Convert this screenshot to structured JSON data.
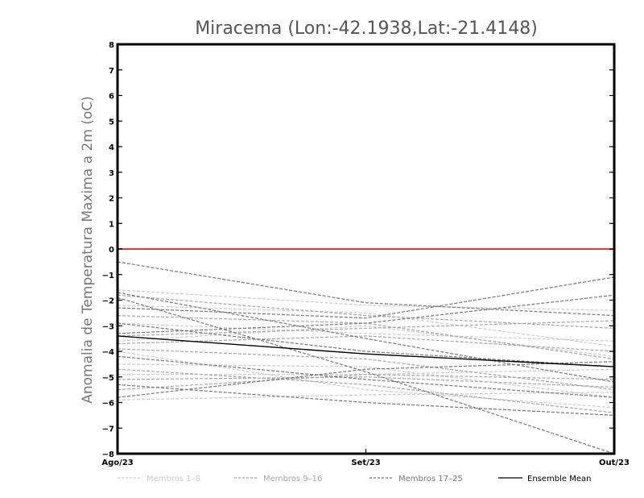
{
  "chart_data": {
    "type": "line",
    "title": "Miracema (Lon:-42.1938,Lat:-21.4148)",
    "ylabel": "Anomalia de Temperatura Maxima a 2m (oC)",
    "xlabel": "",
    "x": [
      "Ago/23",
      "Set/23",
      "Out/23"
    ],
    "ylim": [
      -8,
      8
    ],
    "yticks": [
      8,
      7,
      6,
      5,
      4,
      3,
      2,
      1,
      0,
      -1,
      -2,
      -3,
      -4,
      -5,
      -6,
      -7,
      -8
    ],
    "ytick_labels": [
      "8",
      "7",
      "6",
      "5",
      "4",
      "3",
      "2",
      "1",
      "0",
      "−1",
      "−2",
      "−3",
      "−4",
      "−5",
      "−6",
      "−7",
      "−8"
    ],
    "reference_line": {
      "y": 0,
      "color": "#e8392b"
    },
    "grid": false,
    "legend_position": "bottom",
    "groups": [
      {
        "label": "Membros 1–8",
        "color": "#cccccc",
        "dash": "dashed"
      },
      {
        "label": "Membros 9–16",
        "color": "#a6a6a6",
        "dash": "dashed"
      },
      {
        "label": "Membros 17–25",
        "color": "#777777",
        "dash": "dashed"
      },
      {
        "label": "Ensemble Mean",
        "color": "#000000",
        "dash": "solid"
      }
    ],
    "series": [
      {
        "group": 0,
        "values": [
          -1.6,
          -2.2,
          -2.4
        ]
      },
      {
        "group": 0,
        "values": [
          -2.2,
          -2.5,
          -3.8
        ]
      },
      {
        "group": 0,
        "values": [
          -3.6,
          -3.0,
          -4.2
        ]
      },
      {
        "group": 0,
        "values": [
          -4.5,
          -4.6,
          -5.8
        ]
      },
      {
        "group": 0,
        "values": [
          -4.9,
          -4.9,
          -4.7
        ]
      },
      {
        "group": 0,
        "values": [
          -4.0,
          -5.5,
          -6.2
        ]
      },
      {
        "group": 0,
        "values": [
          -5.9,
          -5.7,
          -5.6
        ]
      },
      {
        "group": 0,
        "values": [
          -2.9,
          -3.3,
          -3.6
        ]
      },
      {
        "group": 1,
        "values": [
          -1.8,
          -2.6,
          -3.1
        ]
      },
      {
        "group": 1,
        "values": [
          -3.4,
          -3.1,
          -2.8
        ]
      },
      {
        "group": 1,
        "values": [
          -3.9,
          -4.3,
          -5.5
        ]
      },
      {
        "group": 1,
        "values": [
          -4.7,
          -5.3,
          -6.4
        ]
      },
      {
        "group": 1,
        "values": [
          -5.5,
          -4.9,
          -5.1
        ]
      },
      {
        "group": 1,
        "values": [
          -2.6,
          -2.9,
          -4.3
        ]
      },
      {
        "group": 1,
        "values": [
          -3.7,
          -3.4,
          -4.0
        ]
      },
      {
        "group": 1,
        "values": [
          -5.1,
          -5.0,
          -5.4
        ]
      },
      {
        "group": 2,
        "values": [
          -0.5,
          -2.1,
          -2.6
        ]
      },
      {
        "group": 2,
        "values": [
          -1.9,
          -4.8,
          -8.0
        ]
      },
      {
        "group": 2,
        "values": [
          -2.3,
          -2.7,
          -1.1
        ]
      },
      {
        "group": 2,
        "values": [
          -3.3,
          -2.9,
          -1.8
        ]
      },
      {
        "group": 2,
        "values": [
          -4.2,
          -5.1,
          -5.8
        ]
      },
      {
        "group": 2,
        "values": [
          -5.8,
          -4.7,
          -4.4
        ]
      },
      {
        "group": 2,
        "values": [
          -5.3,
          -6.0,
          -6.5
        ]
      },
      {
        "group": 2,
        "values": [
          -1.7,
          -3.5,
          -5.2
        ]
      },
      {
        "group": 2,
        "values": [
          -2.9,
          -4.0,
          -4.6
        ]
      },
      {
        "group": 3,
        "values": [
          -3.4,
          -4.1,
          -4.6
        ]
      }
    ]
  }
}
